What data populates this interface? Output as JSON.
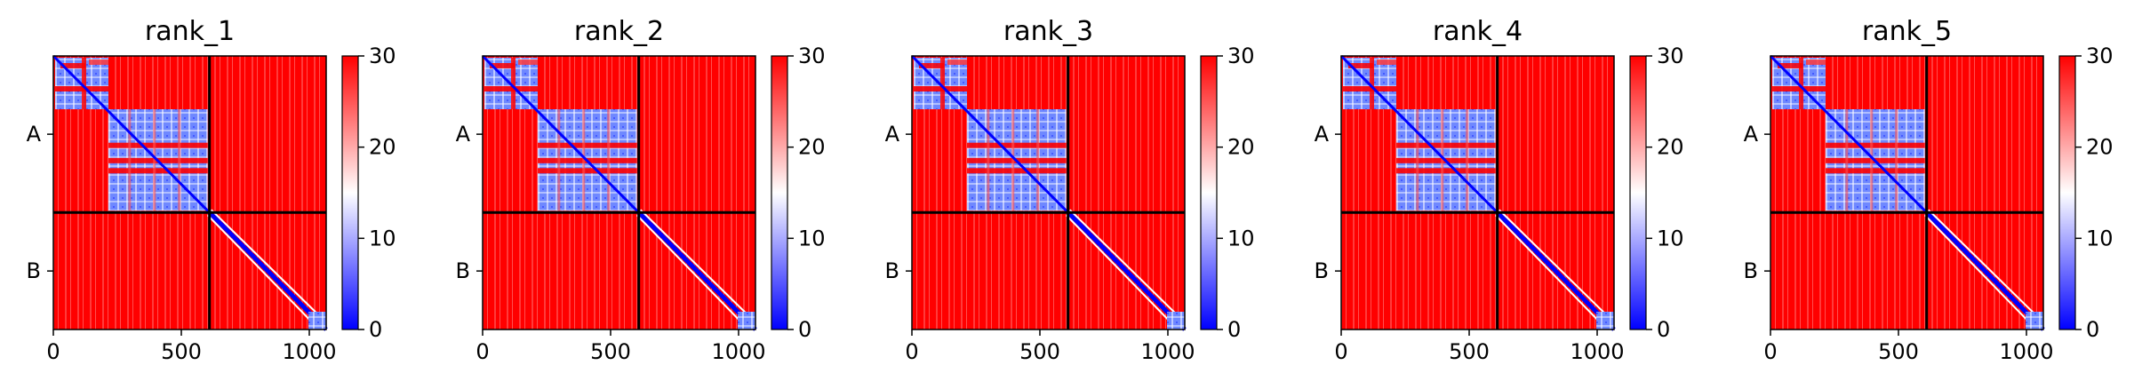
{
  "chart_data": {
    "type": "heatmap",
    "colormap": "bwr",
    "colormap_colors": [
      "#0000ff",
      "#ffffff",
      "#ff0000"
    ],
    "panels": [
      {
        "title": "rank_1"
      },
      {
        "title": "rank_2"
      },
      {
        "title": "rank_3"
      },
      {
        "title": "rank_4"
      },
      {
        "title": "rank_5"
      }
    ],
    "x_range": [
      0,
      1066
    ],
    "x_ticks": [
      0,
      500,
      1000
    ],
    "y_ticks": [
      "A",
      "B"
    ],
    "chain_lengths": [
      610,
      456
    ],
    "colorbar_range": [
      0,
      30
    ],
    "colorbar_ticks": [
      0,
      10,
      20,
      30
    ]
  }
}
